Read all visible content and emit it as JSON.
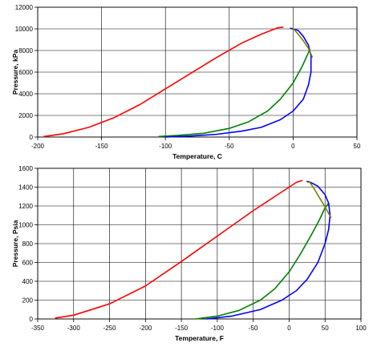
{
  "chart_data": [
    {
      "type": "line",
      "title": "",
      "xlabel": "Temperature, C",
      "ylabel": "Pressure, kPa",
      "xlim": [
        -200,
        50
      ],
      "ylim": [
        0,
        12000
      ],
      "xticks": [
        -200,
        -150,
        -100,
        -50,
        0,
        50
      ],
      "yticks": [
        0,
        2000,
        4000,
        6000,
        8000,
        10000,
        12000
      ],
      "grid": true,
      "legend": "none",
      "series": [
        {
          "color": "#ff0000",
          "x": [
            -195,
            -180,
            -160,
            -140,
            -120,
            -100,
            -80,
            -60,
            -40,
            -25,
            -12,
            -8
          ],
          "y": [
            50,
            300,
            900,
            1800,
            3000,
            4450,
            5900,
            7350,
            8700,
            9500,
            10100,
            10150
          ]
        },
        {
          "color": "#008000",
          "x": [
            -105,
            -90,
            -70,
            -50,
            -35,
            -20,
            -10,
            0,
            7,
            12,
            13
          ],
          "y": [
            50,
            150,
            350,
            800,
            1400,
            2400,
            3500,
            5000,
            6500,
            7800,
            8100
          ]
        },
        {
          "color": "#0000ff",
          "x": [
            -100,
            -80,
            -60,
            -40,
            -25,
            -10,
            0,
            8,
            12,
            14,
            14,
            12,
            8,
            4,
            -2
          ],
          "y": [
            0,
            100,
            250,
            550,
            900,
            1600,
            2400,
            3500,
            4800,
            6000,
            7500,
            8500,
            9300,
            9850,
            10050
          ]
        },
        {
          "color": "#808000",
          "x": [
            0,
            4,
            8,
            12,
            15
          ],
          "y": [
            10050,
            9500,
            8900,
            8200,
            7400
          ]
        }
      ]
    },
    {
      "type": "line",
      "title": "",
      "xlabel": "Temperature, F",
      "ylabel": "Pressure, Psia",
      "xlim": [
        -350,
        100
      ],
      "ylim": [
        0,
        1600
      ],
      "xticks": [
        -350,
        -300,
        -250,
        -200,
        -150,
        -100,
        -50,
        0,
        50,
        100
      ],
      "yticks": [
        0,
        200,
        400,
        600,
        800,
        1000,
        1200,
        1400,
        1600
      ],
      "grid": true,
      "legend": "none",
      "series": [
        {
          "color": "#ff0000",
          "x": [
            -325,
            -300,
            -250,
            -200,
            -150,
            -100,
            -50,
            -20,
            0,
            10,
            18
          ],
          "y": [
            10,
            40,
            160,
            350,
            610,
            880,
            1150,
            1300,
            1400,
            1450,
            1470
          ]
        },
        {
          "color": "#008000",
          "x": [
            -130,
            -100,
            -70,
            -40,
            -20,
            0,
            15,
            30,
            42,
            50,
            55
          ],
          "y": [
            0,
            30,
            90,
            200,
            320,
            500,
            680,
            880,
            1050,
            1180,
            1230
          ]
        },
        {
          "color": "#0000ff",
          "x": [
            -115,
            -80,
            -40,
            -10,
            10,
            25,
            40,
            50,
            55,
            57,
            55,
            50,
            40,
            30,
            25
          ],
          "y": [
            0,
            30,
            100,
            200,
            300,
            420,
            600,
            800,
            950,
            1100,
            1230,
            1320,
            1410,
            1450,
            1460
          ]
        },
        {
          "color": "#808000",
          "x": [
            28,
            35,
            42,
            50,
            58
          ],
          "y": [
            1460,
            1380,
            1290,
            1190,
            1080
          ]
        }
      ]
    }
  ]
}
